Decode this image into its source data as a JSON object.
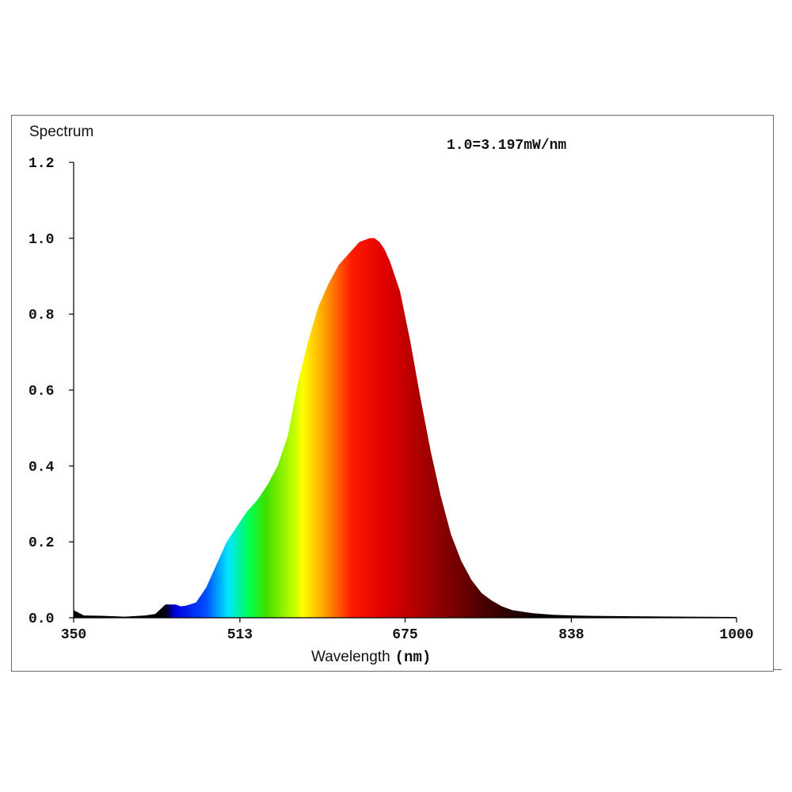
{
  "chart_data": {
    "type": "area",
    "title": "Spectrum",
    "annotation": "1.0=3.197mW/nm",
    "xlabel_text": "Wavelength",
    "xlabel_unit": "(nm)",
    "ylabel": "",
    "xlim": [
      350,
      1000
    ],
    "ylim": [
      0,
      1.2
    ],
    "x_ticks": [
      350,
      513,
      675,
      838,
      1000
    ],
    "x_tick_labels": [
      "350",
      "513",
      "675",
      "838",
      "1000"
    ],
    "y_ticks": [
      0.0,
      0.2,
      0.4,
      0.6,
      0.8,
      1.0,
      1.2
    ],
    "y_tick_labels": [
      "0.0",
      "0.2",
      "0.4",
      "0.6",
      "0.8",
      "1.0",
      "1.2"
    ],
    "grid": false,
    "fill": "wavelength-color gradient",
    "series": [
      {
        "x": [
          350,
          360,
          380,
          400,
          420,
          430,
          440,
          450,
          455,
          460,
          470,
          480,
          490,
          500,
          510,
          520,
          530,
          540,
          550,
          560,
          570,
          580,
          590,
          600,
          610,
          620,
          630,
          640,
          645,
          650,
          655,
          660,
          670,
          680,
          690,
          700,
          710,
          720,
          730,
          740,
          750,
          760,
          770,
          780,
          800,
          820,
          840,
          860,
          900,
          950,
          1000
        ],
        "values": [
          0.02,
          0.006,
          0.005,
          0.003,
          0.006,
          0.01,
          0.035,
          0.035,
          0.03,
          0.032,
          0.04,
          0.08,
          0.14,
          0.2,
          0.24,
          0.28,
          0.31,
          0.35,
          0.4,
          0.48,
          0.62,
          0.73,
          0.82,
          0.88,
          0.93,
          0.96,
          0.99,
          1.0,
          1.0,
          0.99,
          0.97,
          0.94,
          0.86,
          0.73,
          0.58,
          0.44,
          0.32,
          0.22,
          0.15,
          0.1,
          0.065,
          0.045,
          0.03,
          0.02,
          0.012,
          0.008,
          0.006,
          0.005,
          0.004,
          0.003,
          0.002
        ]
      }
    ]
  }
}
